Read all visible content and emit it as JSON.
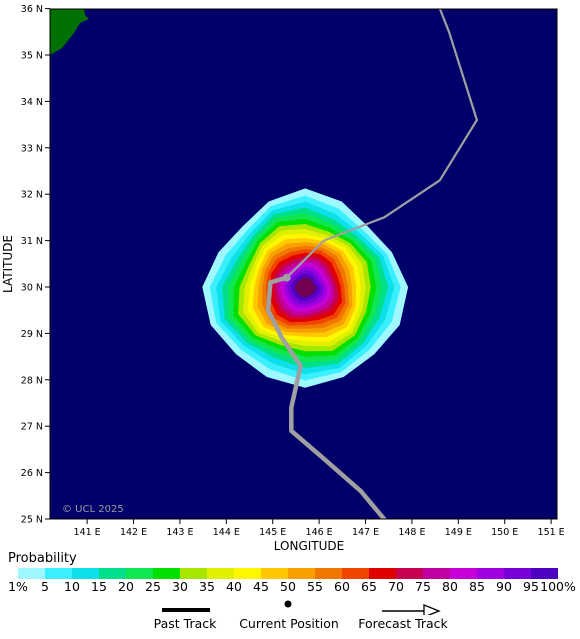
{
  "lon_labels": [
    "141 E",
    "142 E",
    "143 E",
    "144 E",
    "145 E",
    "146 E",
    "147 E",
    "148 E",
    "149 E",
    "150 E",
    "151 E"
  ],
  "lat_labels": [
    "25 N",
    "26 N",
    "27 N",
    "28 N",
    "29 N",
    "30 N",
    "31 N",
    "32 N",
    "33 N",
    "34 N",
    "35 N",
    "36 N"
  ],
  "xlabel": "LONGITUDE",
  "ylabel": "LATITUDE",
  "copyright": "© UCL 2025",
  "colors": {
    "ocean": "#00006b",
    "land": "#007000",
    "track": "#a0a0a0",
    "probability_scale": [
      "#9ff7ff",
      "#3af0ff",
      "#0de0ea",
      "#00e08a",
      "#10e64f",
      "#00e000",
      "#a8e600",
      "#e0f000",
      "#fff700",
      "#ffc800",
      "#f7a000",
      "#f07800",
      "#f04400",
      "#e00000",
      "#c80050",
      "#c000a0",
      "#c800d8",
      "#a000e0",
      "#7800d8",
      "#5000c0",
      "#700050"
    ]
  },
  "legend": {
    "title": "Probability",
    "labels": [
      "1%",
      "5",
      "10",
      "15",
      "20",
      "25",
      "30",
      "35",
      "40",
      "45",
      "50",
      "55",
      "60",
      "65",
      "70",
      "75",
      "80",
      "85",
      "90",
      "95",
      "100%"
    ]
  },
  "key": {
    "past_track": "Past Track",
    "current_position": "Current Position",
    "forecast_track": "Forecast Track"
  },
  "current_position": {
    "lon": 145.3,
    "lat": 30.2
  },
  "past_track": [
    [
      147.4,
      25.0
    ],
    [
      146.9,
      25.6
    ],
    [
      146.1,
      26.3
    ],
    [
      145.4,
      26.9
    ],
    [
      145.4,
      27.4
    ],
    [
      145.6,
      28.3
    ],
    [
      145.2,
      28.9
    ],
    [
      144.9,
      29.5
    ],
    [
      144.95,
      30.1
    ],
    [
      145.3,
      30.2
    ]
  ],
  "forecast_track": [
    [
      145.3,
      30.2
    ],
    [
      146.1,
      31.0
    ],
    [
      147.4,
      31.5
    ],
    [
      148.6,
      32.3
    ],
    [
      149.4,
      33.6
    ],
    [
      148.8,
      35.5
    ],
    [
      148.6,
      36.0
    ]
  ]
}
